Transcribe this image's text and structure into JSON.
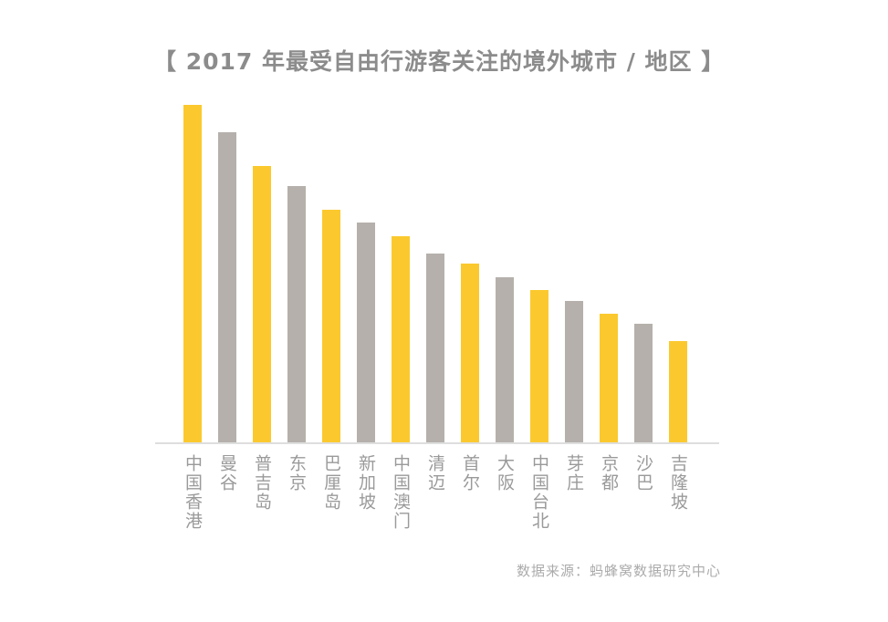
{
  "title": "【 2017 年最受自由行游客关注的境外城市 / 地区 】",
  "source_note": "数据来源：蚂蜂窝数据研究中心",
  "colors": {
    "bar_yellow": "#FBC92E",
    "bar_gray": "#B5B0AB",
    "title_text": "#8C8C8C",
    "label_text": "#9A9A9A",
    "axis_line": "#DEDEDE",
    "source_text": "#ABABAB",
    "background": "#FFFFFF"
  },
  "chart_data": {
    "type": "bar",
    "title": "【 2017 年最受自由行游客关注的境外城市 / 地区 】",
    "categories": [
      "中国香港",
      "曼谷",
      "普吉岛",
      "东京",
      "巴厘岛",
      "新加坡",
      "中国澳门",
      "清迈",
      "首尔",
      "大阪",
      "中国台北",
      "芽庄",
      "京都",
      "沙巴",
      "吉隆坡"
    ],
    "values": [
      100,
      92,
      82,
      76,
      69,
      65,
      61,
      56,
      53,
      49,
      45,
      42,
      38,
      35,
      30
    ],
    "value_note": "relative attention index estimated from bar heights; no value axis or data labels are shown in the chart",
    "bar_colors_pattern": [
      "#FBC92E",
      "#B5B0AB"
    ],
    "xlabel": "",
    "ylabel": "",
    "ylim": [
      0,
      100
    ],
    "grid": false,
    "legend": false,
    "source": "数据来源：蚂蜂窝数据研究中心"
  }
}
